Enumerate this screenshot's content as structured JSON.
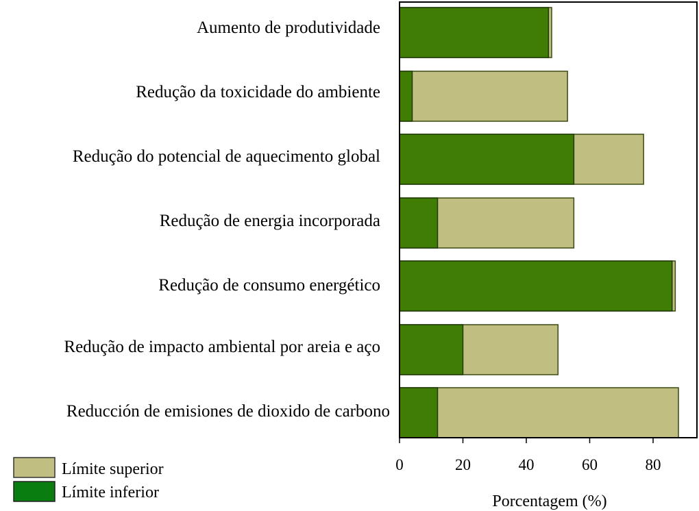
{
  "chart_data": {
    "type": "bar",
    "orientation": "horizontal",
    "categories": [
      "Aumento de produtividade",
      "Redução da toxicidade do ambiente",
      "Redução do potencial de aquecimento global",
      "Redução de energia incorporada",
      "Redução de consumo energético",
      "Redução de impacto ambiental por areia e aço",
      "Reducción de emisiones de dioxido de carbono"
    ],
    "series": [
      {
        "name": "Límite superior",
        "color": "#c0be80",
        "values": [
          48,
          53,
          77,
          55,
          87,
          50,
          88
        ]
      },
      {
        "name": "Límite inferior",
        "color": "#3f7d04",
        "values": [
          47,
          4,
          55,
          12,
          86,
          20,
          12
        ]
      }
    ],
    "xlabel": "Porcentagem (%)",
    "ylabel": "",
    "xlim": [
      0,
      95
    ],
    "xticks": [
      "0",
      "20",
      "40",
      "60",
      "80"
    ],
    "grid": false,
    "legend_position": "bottom-left",
    "legend_swatch_colors": [
      "#c0be80",
      "#0a7d10"
    ]
  }
}
